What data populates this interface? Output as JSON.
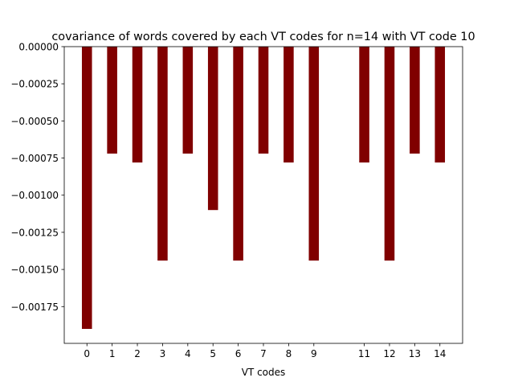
{
  "chart_data": {
    "type": "bar",
    "title": "covariance of words covered by each VT codes for n=14 with VT code 10",
    "xlabel": "VT codes",
    "ylabel": "",
    "categories": [
      "0",
      "1",
      "2",
      "3",
      "4",
      "5",
      "6",
      "7",
      "8",
      "9",
      "11",
      "12",
      "13",
      "14"
    ],
    "x": [
      0,
      1,
      2,
      3,
      4,
      5,
      6,
      7,
      8,
      9,
      11,
      12,
      13,
      14
    ],
    "values": [
      -0.0019,
      -0.00072,
      -0.00078,
      -0.00144,
      -0.00072,
      -0.0011,
      -0.00144,
      -0.00072,
      -0.00078,
      -0.00144,
      -0.00078,
      -0.00144,
      -0.00072,
      -0.00078
    ],
    "xlim": [
      -0.9,
      14.9
    ],
    "ylim": [
      -0.0019975,
      0.0
    ],
    "yticks": [
      0.0,
      -0.00025,
      -0.0005,
      -0.00075,
      -0.001,
      -0.00125,
      -0.0015,
      -0.00175
    ],
    "ytick_labels": [
      "0.00000",
      "−0.00025",
      "−0.00050",
      "−0.00075",
      "−0.00100",
      "−0.00125",
      "−0.00150",
      "−0.00175"
    ],
    "bar_color": "#800000",
    "grid": false,
    "legend": "none"
  }
}
